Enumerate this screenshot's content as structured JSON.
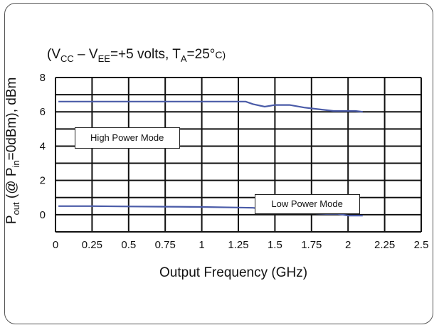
{
  "chart_data": {
    "type": "line",
    "conditions": {
      "open": "(V",
      "vcc_sub": "CC",
      "minus": " – V",
      "vee_sub": "EE",
      "mid": "=+5 volts, T",
      "ta_sub": "A",
      "eq": "=25°",
      "close": "C)"
    },
    "ylabel": {
      "p": "P",
      "out_sub": "out",
      "mid": " (@ P",
      "in_sub": "in",
      "rest": "=0dBm), dBm"
    },
    "xlabel": "Output Frequency (GHz)",
    "xlim": [
      0,
      2.5
    ],
    "ylim": [
      -1,
      8
    ],
    "x_ticks": [
      "0",
      "0.25",
      "0.5",
      "0.75",
      "1",
      "1.25",
      "1.5",
      "1.75",
      "2",
      "2.25",
      "2.5"
    ],
    "y_ticks": [
      "0",
      "2",
      "4",
      "6",
      "8"
    ],
    "grid": true,
    "line_color": "#4a5ba8",
    "series": [
      {
        "label": "High Power Mode",
        "x": [
          0.02,
          0.25,
          0.5,
          0.75,
          1.0,
          1.25,
          1.3,
          1.35,
          1.43,
          1.5,
          1.6,
          1.7,
          1.8,
          1.9,
          2.0,
          2.05,
          2.1
        ],
        "y": [
          6.6,
          6.6,
          6.6,
          6.6,
          6.6,
          6.6,
          6.6,
          6.45,
          6.3,
          6.4,
          6.4,
          6.25,
          6.15,
          6.05,
          6.05,
          6.05,
          6.0
        ]
      },
      {
        "label": "Low Power Mode",
        "x": [
          0.02,
          0.25,
          0.5,
          0.75,
          1.0,
          1.25,
          1.35,
          1.45,
          1.52,
          1.57,
          1.62,
          1.7,
          1.78,
          1.85,
          1.93,
          2.0,
          2.1
        ],
        "y": [
          0.5,
          0.5,
          0.48,
          0.47,
          0.45,
          0.42,
          0.4,
          0.3,
          0.2,
          0.2,
          0.3,
          0.2,
          0.08,
          0.05,
          0.05,
          -0.05,
          -0.05
        ]
      }
    ],
    "annotations": [
      {
        "text": "High Power Mode",
        "x": 0.13,
        "y": 5.1,
        "series": 0
      },
      {
        "text": "Low Power Mode",
        "x": 1.36,
        "y": 1.2,
        "series": 1
      }
    ]
  }
}
